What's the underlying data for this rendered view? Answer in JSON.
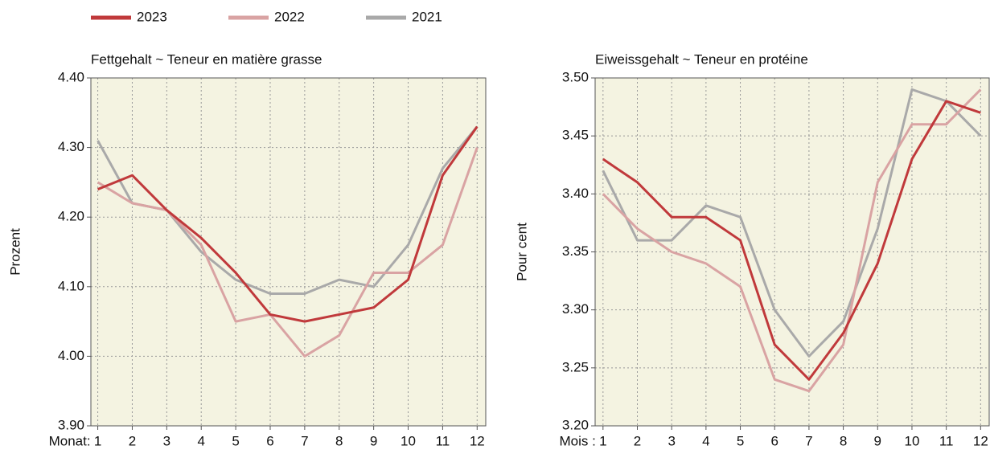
{
  "chart_data": [
    {
      "type": "line",
      "title": "Fettgehalt   ~   Teneur en matière grasse",
      "y_label": "Prozent",
      "x_label": "Monat:",
      "x": [
        1,
        2,
        3,
        4,
        5,
        6,
        7,
        8,
        9,
        10,
        11,
        12
      ],
      "xlim": [
        0.8,
        12.25
      ],
      "xticks": [
        1,
        2,
        3,
        4,
        5,
        6,
        7,
        8,
        9,
        10,
        11,
        12
      ],
      "ylim": [
        3.9,
        4.4
      ],
      "yticks": [
        {
          "value": 3.9,
          "label": "3.90"
        },
        {
          "value": 4.0,
          "label": "4.00"
        },
        {
          "value": 4.1,
          "label": "4.10"
        },
        {
          "value": 4.2,
          "label": "4.20"
        },
        {
          "value": 4.3,
          "label": "4.30"
        },
        {
          "value": 4.4,
          "label": "4.40"
        }
      ],
      "grid": true,
      "legend": "top",
      "series": [
        {
          "name": "2023",
          "color": "#c0393b",
          "values": [
            4.24,
            4.26,
            4.21,
            4.17,
            4.12,
            4.06,
            4.05,
            4.06,
            4.07,
            4.11,
            4.26,
            4.33
          ]
        },
        {
          "name": "2022",
          "color": "#d9a3a3",
          "values": [
            4.25,
            4.22,
            4.21,
            4.16,
            4.05,
            4.06,
            4.0,
            4.03,
            4.12,
            4.12,
            4.16,
            4.3
          ]
        },
        {
          "name": "2021",
          "color": "#a9a9a9",
          "values": [
            4.31,
            4.22,
            4.21,
            4.15,
            4.11,
            4.09,
            4.09,
            4.11,
            4.1,
            4.16,
            4.27,
            4.33
          ]
        }
      ]
    },
    {
      "type": "line",
      "title": "Eiweissgehalt   ~   Teneur en protéine",
      "y_label": "Pour cent",
      "x_label": "Mois :",
      "x": [
        1,
        2,
        3,
        4,
        5,
        6,
        7,
        8,
        9,
        10,
        11,
        12
      ],
      "xlim": [
        0.77,
        12.25
      ],
      "xticks": [
        1,
        2,
        3,
        4,
        5,
        6,
        7,
        8,
        9,
        10,
        11,
        12
      ],
      "ylim": [
        3.2,
        3.5
      ],
      "yticks": [
        {
          "value": 3.2,
          "label": "3.20"
        },
        {
          "value": 3.25,
          "label": "3.25"
        },
        {
          "value": 3.3,
          "label": "3.30"
        },
        {
          "value": 3.35,
          "label": "3.35"
        },
        {
          "value": 3.4,
          "label": "3.40"
        },
        {
          "value": 3.45,
          "label": "3.45"
        },
        {
          "value": 3.5,
          "label": "3.50"
        }
      ],
      "grid": true,
      "series": [
        {
          "name": "2023",
          "color": "#c0393b",
          "values": [
            3.43,
            3.41,
            3.38,
            3.38,
            3.36,
            3.27,
            3.24,
            3.28,
            3.34,
            3.43,
            3.48,
            3.47
          ]
        },
        {
          "name": "2022",
          "color": "#d9a3a3",
          "values": [
            3.4,
            3.37,
            3.35,
            3.34,
            3.32,
            3.24,
            3.23,
            3.27,
            3.41,
            3.46,
            3.46,
            3.49
          ]
        },
        {
          "name": "2021",
          "color": "#a9a9a9",
          "values": [
            3.42,
            3.36,
            3.36,
            3.39,
            3.38,
            3.3,
            3.26,
            3.29,
            3.37,
            3.49,
            3.48,
            3.45
          ]
        }
      ]
    }
  ]
}
